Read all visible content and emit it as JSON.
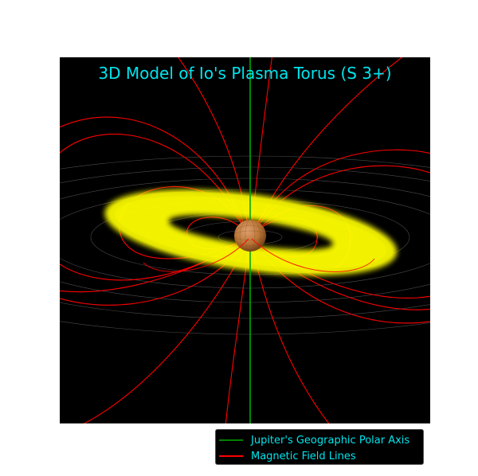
{
  "chart_data": {
    "type": "3d-surface",
    "title": "3D Model of Io's Plasma Torus (S 3+)",
    "background": "#000000",
    "legend_position": "lower-right",
    "series": [
      {
        "name": "Jupiter's Geographic Polar Axis",
        "color": "#008000"
      },
      {
        "name": "Magnetic Field Lines",
        "color": "#ff0000"
      }
    ],
    "torus_color": "#ffff00",
    "planet_color": "#b87333",
    "grid": true
  }
}
